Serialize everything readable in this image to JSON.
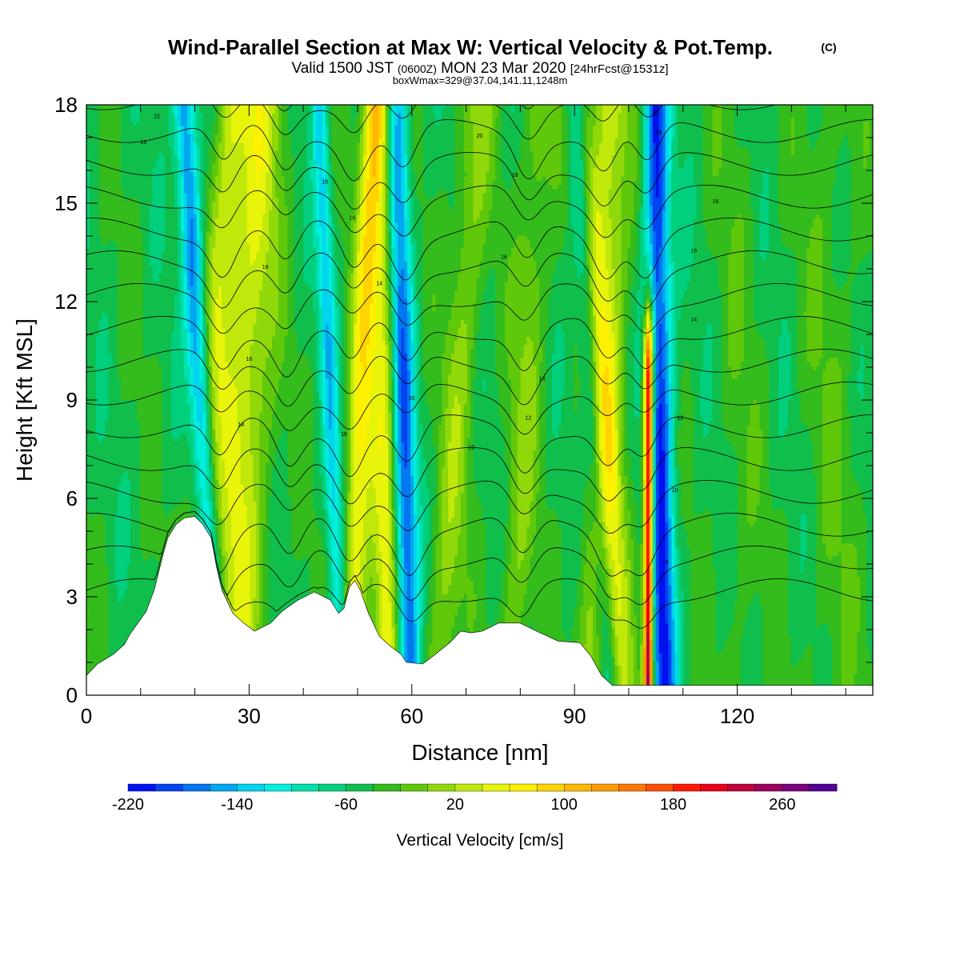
{
  "header": {
    "title": "Wind-Parallel Section at Max W: Vertical Velocity & Pot.Temp.",
    "copyright_mark": "(C)",
    "subtitle_parts": [
      "Valid 1500 JST",
      "(0600Z)",
      "MON 23 Mar 2020",
      "[24hrFcst@1531z]"
    ],
    "info": "boxWmax=329@37.04,141.11,1248m"
  },
  "chart_data": {
    "type": "heatmap",
    "xlabel": "Distance [nm]",
    "ylabel": "Height [Kft MSL]",
    "xlim": [
      0,
      145
    ],
    "ylim": [
      0,
      18
    ],
    "x_ticks": [
      0,
      30,
      60,
      90,
      120
    ],
    "y_ticks": [
      0,
      3,
      6,
      9,
      12,
      15,
      18
    ],
    "colorbar": {
      "title": "Vertical Velocity [cm/s]",
      "min": -220,
      "step": 20,
      "labels": [
        "-220",
        "-140",
        "-60",
        "20",
        "100",
        "180",
        "260"
      ],
      "colors": [
        "#0011ee",
        "#0044f2",
        "#0077f0",
        "#00a6ee",
        "#00d4ee",
        "#00eedc",
        "#00dfae",
        "#00cf7d",
        "#10be4c",
        "#34bb1c",
        "#60c80a",
        "#90d80a",
        "#c0e80a",
        "#e8f40a",
        "#fff000",
        "#ffd400",
        "#ffb800",
        "#ff9a00",
        "#ff7800",
        "#ff4e00",
        "#ff1a00",
        "#e80018",
        "#c0003c",
        "#9a0060",
        "#7a007c",
        "#520094"
      ]
    },
    "updrafts": [
      {
        "x_bottom": 19.5,
        "x_top": 27,
        "width": 2.8,
        "peak": 70
      },
      {
        "x_bottom": 27,
        "x_top": 32,
        "width": 4.5,
        "peak": 85
      },
      {
        "x_bottom": 48.5,
        "x_top": 53,
        "width": 2.3,
        "peak": 110
      },
      {
        "x_bottom": 55.5,
        "x_top": 55,
        "width": 2.6,
        "peak": 95
      },
      {
        "x_bottom": 65,
        "x_top": 72,
        "width": 3.2,
        "peak": 50
      },
      {
        "x_bottom": 78,
        "x_top": 84,
        "width": 3.0,
        "peak": 45
      },
      {
        "x_bottom": 94,
        "x_top": 97,
        "width": 3.5,
        "peak": 80
      },
      {
        "x_bottom": 99,
        "x_top": 91,
        "width": 2.8,
        "peak": 60
      },
      {
        "x_bottom": 103.6,
        "x_top": 103.8,
        "width": 0.9,
        "peak": 310,
        "z_top": 9.5
      },
      {
        "x_bottom": 121,
        "x_top": 120,
        "width": 4.0,
        "peak": 15
      },
      {
        "x_bottom": 138,
        "x_top": 137,
        "width": 5.0,
        "peak": 20
      }
    ],
    "downdrafts": [
      {
        "x_bottom": 24.2,
        "x_top": 18,
        "width": 2.0,
        "peak": -125
      },
      {
        "x_bottom": 47,
        "x_top": 43,
        "width": 1.6,
        "peak": -80
      },
      {
        "x_bottom": 59.5,
        "x_top": 57,
        "width": 2.2,
        "peak": -145
      },
      {
        "x_bottom": 96.5,
        "x_top": 90,
        "width": 2.0,
        "peak": -90
      },
      {
        "x_bottom": 106.5,
        "x_top": 105,
        "width": 2.3,
        "peak": -160
      }
    ],
    "terrain": [
      [
        0,
        0.6
      ],
      [
        2,
        0.95
      ],
      [
        5,
        1.25
      ],
      [
        7,
        1.55
      ],
      [
        8,
        1.85
      ],
      [
        9.5,
        2.2
      ],
      [
        11,
        2.55
      ],
      [
        12.5,
        3.2
      ],
      [
        14,
        4.2
      ],
      [
        15,
        4.8
      ],
      [
        16.5,
        5.2
      ],
      [
        18,
        5.4
      ],
      [
        20,
        5.45
      ],
      [
        21.5,
        5.2
      ],
      [
        23,
        4.8
      ],
      [
        24,
        3.9
      ],
      [
        25,
        3.2
      ],
      [
        27,
        2.5
      ],
      [
        29,
        2.2
      ],
      [
        31,
        1.95
      ],
      [
        34,
        2.2
      ],
      [
        36,
        2.55
      ],
      [
        39,
        2.9
      ],
      [
        42,
        3.15
      ],
      [
        45,
        2.9
      ],
      [
        46.5,
        2.5
      ],
      [
        47.5,
        2.65
      ],
      [
        48.5,
        3.3
      ],
      [
        49.5,
        3.5
      ],
      [
        50.5,
        3.2
      ],
      [
        52,
        2.5
      ],
      [
        54,
        1.8
      ],
      [
        56,
        1.5
      ],
      [
        58,
        1.25
      ],
      [
        59,
        1.0
      ],
      [
        62,
        0.95
      ],
      [
        64,
        1.2
      ],
      [
        67,
        1.6
      ],
      [
        69,
        1.95
      ],
      [
        71,
        1.9
      ],
      [
        73,
        1.95
      ],
      [
        76,
        2.2
      ],
      [
        80,
        2.2
      ],
      [
        83,
        1.95
      ],
      [
        87,
        1.65
      ],
      [
        91,
        1.6
      ],
      [
        93,
        1.2
      ],
      [
        95,
        0.6
      ],
      [
        97,
        0.3
      ],
      [
        102,
        0.3
      ],
      [
        145,
        0.3
      ]
    ],
    "theta_contours": {
      "levels": [
        8,
        10,
        12,
        14,
        16,
        18,
        20,
        22
      ],
      "z0": 3.2,
      "dz": 1.0,
      "n_lines": 18,
      "wave_centers": [
        24,
        38,
        48,
        60,
        80,
        97,
        102
      ],
      "labels": [
        {
          "text": "22",
          "x": 13,
          "z": 17.6
        },
        {
          "text": "18",
          "x": 10.5,
          "z": 16.8
        },
        {
          "text": "16",
          "x": 44,
          "z": 15.6
        },
        {
          "text": "16",
          "x": 49,
          "z": 14.5
        },
        {
          "text": "18",
          "x": 33,
          "z": 13.0
        },
        {
          "text": "14",
          "x": 54,
          "z": 12.5
        },
        {
          "text": "16",
          "x": 30,
          "z": 10.2
        },
        {
          "text": "18",
          "x": 28.5,
          "z": 8.2
        },
        {
          "text": "16",
          "x": 47.5,
          "z": 7.9
        },
        {
          "text": "20",
          "x": 60,
          "z": 9.0
        },
        {
          "text": "10",
          "x": 71,
          "z": 7.5
        },
        {
          "text": "20",
          "x": 72.5,
          "z": 17.0
        },
        {
          "text": "18",
          "x": 79,
          "z": 15.8
        },
        {
          "text": "16",
          "x": 77,
          "z": 13.3
        },
        {
          "text": "14",
          "x": 84,
          "z": 9.6
        },
        {
          "text": "12",
          "x": 81.5,
          "z": 8.4
        },
        {
          "text": "20",
          "x": 105,
          "z": 17.7
        },
        {
          "text": "18",
          "x": 105.5,
          "z": 17.1
        },
        {
          "text": "16",
          "x": 116,
          "z": 15.0
        },
        {
          "text": "16",
          "x": 112,
          "z": 13.5
        },
        {
          "text": "14",
          "x": 112,
          "z": 11.4
        },
        {
          "text": "12",
          "x": 109.5,
          "z": 8.4
        },
        {
          "text": "10",
          "x": 108.5,
          "z": 6.2
        },
        {
          "text": "8",
          "x": 107,
          "z": 4.0
        }
      ]
    }
  }
}
